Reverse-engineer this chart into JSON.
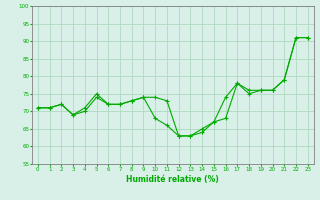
{
  "title": "",
  "xlabel": "Humidité relative (%)",
  "ylabel": "",
  "background_color": "#d8f0e8",
  "grid_color": "#b0d8c0",
  "line_color": "#00aa00",
  "marker_color": "#00aa00",
  "ylim": [
    55,
    100
  ],
  "yticks": [
    55,
    60,
    65,
    70,
    75,
    80,
    85,
    90,
    95,
    100
  ],
  "xlim": [
    -0.5,
    23.5
  ],
  "xticks": [
    0,
    1,
    2,
    3,
    4,
    5,
    6,
    7,
    8,
    9,
    10,
    11,
    12,
    13,
    14,
    15,
    16,
    17,
    18,
    19,
    20,
    21,
    22,
    23
  ],
  "line1_x": [
    0,
    1,
    2,
    3,
    4,
    5,
    6,
    7,
    8,
    9,
    10,
    11,
    12,
    13,
    14,
    15,
    16,
    17,
    18,
    19,
    20,
    21,
    22,
    23
  ],
  "line1_y": [
    71,
    71,
    72,
    69,
    71,
    75,
    72,
    72,
    73,
    74,
    74,
    73,
    63,
    63,
    65,
    67,
    68,
    78,
    75,
    76,
    76,
    79,
    91,
    91
  ],
  "line2_x": [
    0,
    1,
    2,
    3,
    4,
    5,
    6,
    7,
    8,
    9,
    10,
    11,
    12,
    13,
    14,
    15,
    16,
    17,
    18,
    19,
    20,
    21,
    22,
    23
  ],
  "line2_y": [
    71,
    71,
    72,
    69,
    70,
    74,
    72,
    72,
    73,
    74,
    68,
    66,
    63,
    63,
    64,
    67,
    74,
    78,
    76,
    76,
    76,
    79,
    91,
    91
  ]
}
